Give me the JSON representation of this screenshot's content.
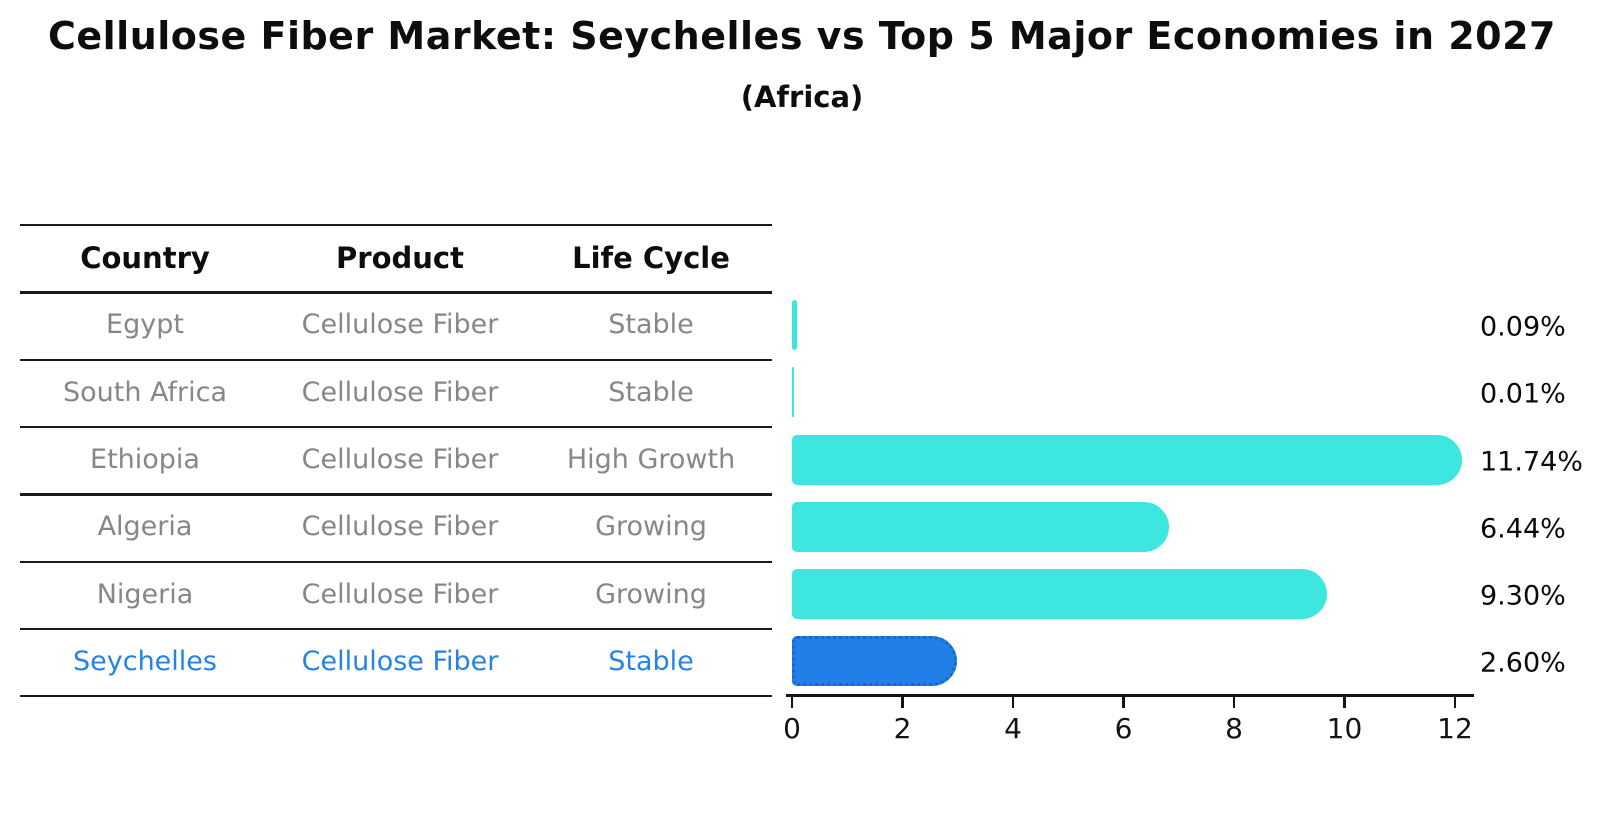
{
  "title": "Cellulose Fiber Market: Seychelles vs Top 5 Major Economies in 2027",
  "subtitle": "(Africa)",
  "table": {
    "headers": [
      "Country",
      "Product",
      "Life Cycle"
    ],
    "rows": [
      {
        "country": "Egypt",
        "product": "Cellulose Fiber",
        "life_cycle": "Stable",
        "highlighted": false
      },
      {
        "country": "South Africa",
        "product": "Cellulose Fiber",
        "life_cycle": "Stable",
        "highlighted": false
      },
      {
        "country": "Ethiopia",
        "product": "Cellulose Fiber",
        "life_cycle": "High Growth",
        "highlighted": false
      },
      {
        "country": "Algeria",
        "product": "Cellulose Fiber",
        "life_cycle": "Growing",
        "highlighted": false
      },
      {
        "country": "Nigeria",
        "product": "Cellulose Fiber",
        "life_cycle": "Growing",
        "highlighted": false
      },
      {
        "country": "Seychelles",
        "product": "Cellulose Fiber",
        "life_cycle": "Stable",
        "highlighted": true
      }
    ]
  },
  "chart_data": {
    "type": "bar",
    "orientation": "horizontal",
    "title": "Cellulose Fiber Market: Seychelles vs Top 5 Major Economies in 2027 (Africa)",
    "categories": [
      "Egypt",
      "South Africa",
      "Ethiopia",
      "Algeria",
      "Nigeria",
      "Seychelles"
    ],
    "values": [
      0.09,
      0.01,
      11.74,
      6.44,
      9.3,
      2.6
    ],
    "value_labels": [
      "0.09%",
      "0.01%",
      "11.74%",
      "6.44%",
      "9.30%",
      "2.60%"
    ],
    "xlabel": "",
    "ylabel": "",
    "xticks": [
      0,
      2,
      4,
      6,
      8,
      10,
      12
    ],
    "xlim": [
      0,
      12.3
    ],
    "grid": false,
    "legend": false,
    "highlight_index": 5
  },
  "colors": {
    "bar": "#3ee6e0",
    "highlight_bar": "#2080e8",
    "highlight_border": "#1668cc",
    "highlight_text": "#2583e6",
    "table_text": "#878787",
    "heading_text": "#0d0d0d",
    "axis": "#141414"
  }
}
